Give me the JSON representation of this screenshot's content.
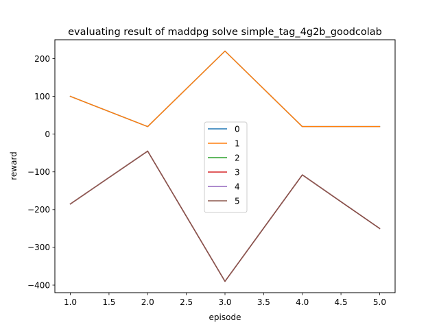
{
  "chart_data": {
    "type": "line",
    "title": "evaluating result of maddpg solve simple_tag_4g2b_goodcolab",
    "xlabel": "episode",
    "ylabel": "reward",
    "x": [
      1,
      2,
      3,
      4,
      5
    ],
    "xlim": [
      0.8,
      5.2
    ],
    "ylim": [
      -420,
      250
    ],
    "xticks": [
      1.0,
      1.5,
      2.0,
      2.5,
      3.0,
      3.5,
      4.0,
      4.5,
      5.0
    ],
    "xtick_labels": [
      "1.0",
      "1.5",
      "2.0",
      "2.5",
      "3.0",
      "3.5",
      "4.0",
      "4.5",
      "5.0"
    ],
    "yticks": [
      -400,
      -300,
      -200,
      -100,
      0,
      100,
      200
    ],
    "ytick_labels": [
      "−400",
      "−300",
      "−200",
      "−100",
      "0",
      "100",
      "200"
    ],
    "grid": false,
    "legend_position": "center",
    "series": [
      {
        "name": "0",
        "color": "#1f77b4",
        "values": [
          100,
          20,
          220,
          20,
          20
        ]
      },
      {
        "name": "1",
        "color": "#ff7f0e",
        "values": [
          100,
          20,
          220,
          20,
          20
        ]
      },
      {
        "name": "2",
        "color": "#2ca02c",
        "values": [
          -185,
          -45,
          -390,
          -108,
          -250
        ]
      },
      {
        "name": "3",
        "color": "#d62728",
        "values": [
          -185,
          -45,
          -390,
          -108,
          -250
        ]
      },
      {
        "name": "4",
        "color": "#9467bd",
        "values": [
          -185,
          -45,
          -390,
          -108,
          -250
        ]
      },
      {
        "name": "5",
        "color": "#8c564b",
        "values": [
          -185,
          -45,
          -390,
          -108,
          -250
        ]
      }
    ]
  }
}
